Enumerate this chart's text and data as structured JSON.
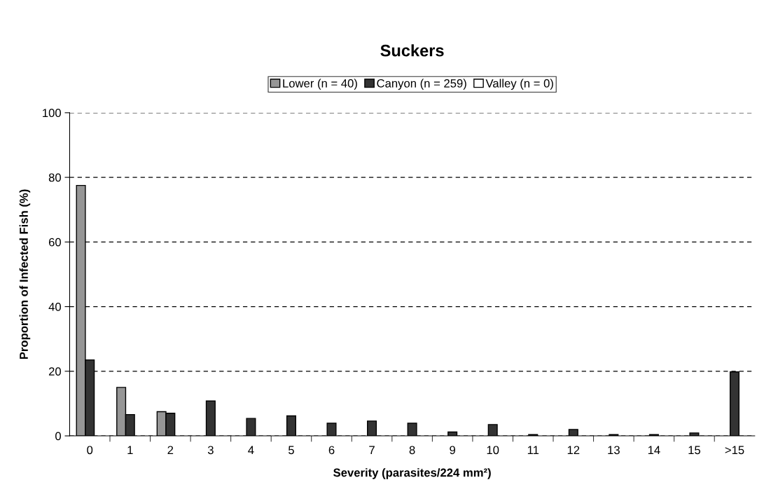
{
  "chart_data": {
    "type": "bar",
    "title": "Suckers",
    "xlabel": "Severity (parasites/224 mm²)",
    "ylabel": "Proportion of Infected Fish (%)",
    "categories": [
      "0",
      "1",
      "2",
      "3",
      "4",
      "5",
      "6",
      "7",
      "8",
      "9",
      "10",
      "11",
      "12",
      "13",
      "14",
      "15",
      ">15"
    ],
    "series": [
      {
        "name": "Lower (n = 40)",
        "color": "#969696",
        "values": [
          77.5,
          15,
          7.5,
          0,
          0,
          0,
          0,
          0,
          0,
          0,
          0,
          0,
          0,
          0,
          0,
          0,
          0
        ]
      },
      {
        "name": "Canyon (n = 259)",
        "color": "#333333",
        "values": [
          23.5,
          6.6,
          7,
          10.8,
          5.4,
          6.2,
          3.9,
          4.6,
          3.9,
          1.2,
          3.5,
          0.4,
          2,
          0.4,
          0.4,
          0.9,
          19.8
        ]
      },
      {
        "name": "Valley (n = 0)",
        "color": "#ffffff",
        "values": [
          0,
          0,
          0,
          0,
          0,
          0,
          0,
          0,
          0,
          0,
          0,
          0,
          0,
          0,
          0,
          0,
          0
        ]
      }
    ],
    "ylim": [
      0,
      100
    ],
    "yticks": [
      0,
      20,
      40,
      60,
      80,
      100
    ],
    "grid": "y",
    "legend": "top",
    "line_style": "dashed"
  }
}
